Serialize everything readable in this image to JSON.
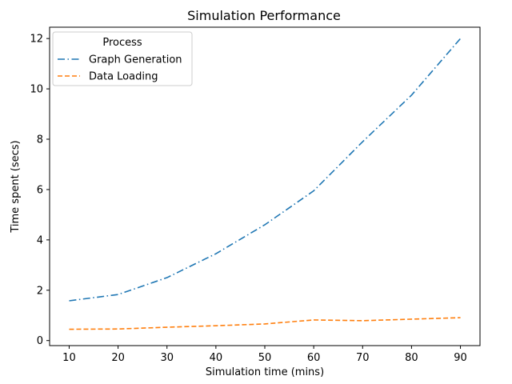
{
  "chart_data": {
    "type": "line",
    "title": "Simulation Performance",
    "xlabel": "Simulation time (mins)",
    "ylabel": "Time spent (secs)",
    "x": [
      10,
      20,
      30,
      40,
      50,
      60,
      70,
      80,
      90
    ],
    "xticks": [
      10,
      20,
      30,
      40,
      50,
      60,
      70,
      80,
      90
    ],
    "yticks": [
      0,
      2,
      4,
      6,
      8,
      10,
      12
    ],
    "xlim": [
      6,
      94
    ],
    "ylim": [
      -0.2,
      12.45
    ],
    "legend": {
      "title": "Process",
      "placement": "top-left"
    },
    "grid": false,
    "series": [
      {
        "name": "Graph Generation",
        "values": [
          1.58,
          1.83,
          2.5,
          3.45,
          4.6,
          5.95,
          7.9,
          9.75,
          12.0
        ],
        "color": "#1f77b4",
        "dash": "dash-dot"
      },
      {
        "name": "Data Loading",
        "values": [
          0.45,
          0.46,
          0.53,
          0.59,
          0.66,
          0.82,
          0.79,
          0.85,
          0.91
        ],
        "color": "#ff7f0e",
        "dash": "dashed"
      }
    ]
  }
}
